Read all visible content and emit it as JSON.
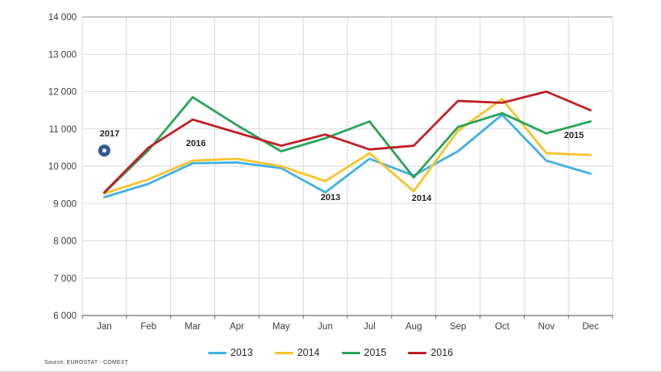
{
  "chart_data": {
    "type": "line",
    "title": "",
    "categories": [
      "Jan",
      "Feb",
      "Mar",
      "Apr",
      "May",
      "Jun",
      "Jul",
      "Aug",
      "Sep",
      "Oct",
      "Nov",
      "Dec"
    ],
    "series": [
      {
        "name": "2013",
        "color": "#41b1e1",
        "values": [
          9170,
          9530,
          10080,
          10100,
          9950,
          9300,
          10200,
          9750,
          10400,
          11380,
          10150,
          9800
        ]
      },
      {
        "name": "2014",
        "color": "#fac32c",
        "values": [
          9270,
          9650,
          10150,
          10200,
          10000,
          9600,
          10350,
          9330,
          10950,
          11800,
          10350,
          10300
        ]
      },
      {
        "name": "2015",
        "color": "#27a45a",
        "values": [
          9290,
          10430,
          11850,
          11100,
          10400,
          10750,
          11200,
          9700,
          11050,
          11420,
          10880,
          11200
        ]
      },
      {
        "name": "2016",
        "color": "#bf2026",
        "values": [
          9300,
          10500,
          11250,
          10900,
          10550,
          10850,
          10450,
          10550,
          11750,
          11700,
          12000,
          11500
        ]
      }
    ],
    "extra_point": {
      "name": "2017",
      "month": "Jan",
      "value": 10420,
      "color": "#2f5b93",
      "marker": "donut"
    },
    "ylim": [
      6000,
      14000
    ],
    "y_step": 1000,
    "y_tick_labels": [
      "14 000",
      "13 000",
      "12 000",
      "11 000",
      "10 000",
      "9 000",
      "8 000",
      "7 000",
      "6 000"
    ],
    "grid": "horizontal+vertical",
    "legend_position": "bottom"
  },
  "annotations": {
    "p2017": "2017",
    "p2016": "2016",
    "p2013": "2013",
    "p2014": "2014",
    "p2015": "2015"
  },
  "footer": {
    "source_note": "Source: EUROSTAT - COMEXT"
  }
}
